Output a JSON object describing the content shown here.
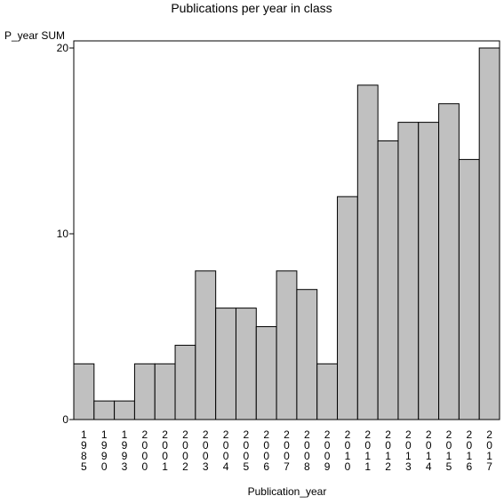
{
  "chart_data": {
    "type": "bar",
    "title": "Publications per year in class",
    "ylabel": "P_year SUM",
    "xlabel": "Publication_year",
    "categories": [
      "1985",
      "1990",
      "1993",
      "2000",
      "2001",
      "2002",
      "2003",
      "2004",
      "2005",
      "2006",
      "2007",
      "2008",
      "2009",
      "2010",
      "2011",
      "2012",
      "2013",
      "2014",
      "2015",
      "2016",
      "2017"
    ],
    "values": [
      3,
      1,
      1,
      3,
      3,
      4,
      8,
      6,
      6,
      5,
      8,
      7,
      3,
      12,
      18,
      15,
      16,
      16,
      17,
      14,
      20
    ],
    "yticks": [
      0,
      10,
      20
    ],
    "ylim": [
      0,
      20
    ],
    "grid": false,
    "colors": {
      "bar_fill": "#c0c0c0",
      "bar_stroke": "#000000",
      "axis": "#000000"
    }
  }
}
